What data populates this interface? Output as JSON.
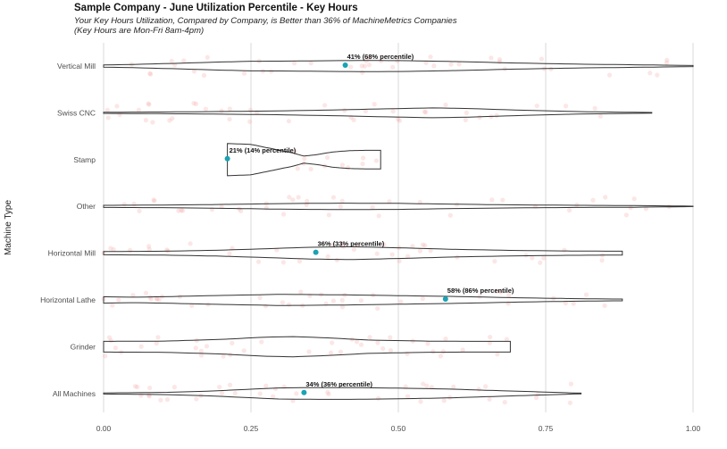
{
  "title": "Sample Company - June Utilization Percentile - Key Hours",
  "subtitle_lines": [
    "Your Key Hours Utilization, Compared by Company, is Better than 36% of MachineMetrics Companies",
    "(Key Hours are Mon-Fri 8am-4pm)"
  ],
  "chart_data": {
    "type": "violin",
    "title": "Sample Company - June Utilization Percentile - Key Hours",
    "xlabel": "",
    "ylabel": "Machine Type",
    "xlim": [
      0,
      1
    ],
    "x_ticks": [
      {
        "value": 0,
        "label": "0.00"
      },
      {
        "value": 0.25,
        "label": "0.25"
      },
      {
        "value": 0.5,
        "label": "0.50"
      },
      {
        "value": 0.75,
        "label": "0.75"
      },
      {
        "value": 1,
        "label": "1.00"
      }
    ],
    "grid": true,
    "colors": {
      "violin_stroke": "#333333",
      "highlight_point": "#1aa3b2",
      "jitter_points": "#f4a6a6",
      "grid": "#d9d9d9"
    },
    "categories": [
      "Vertical Mill",
      "Swiss CNC",
      "Stamp",
      "Other",
      "Horizontal Mill",
      "Horizontal Lathe",
      "Grinder",
      "All Machines"
    ],
    "violins": [
      {
        "category": "Vertical Mill",
        "min": 0.0,
        "max": 1.0,
        "density": [
          [
            0.0,
            0.1
          ],
          [
            0.05,
            0.15
          ],
          [
            0.12,
            0.25
          ],
          [
            0.2,
            0.38
          ],
          [
            0.25,
            0.45
          ],
          [
            0.3,
            0.46
          ],
          [
            0.38,
            0.5
          ],
          [
            0.45,
            0.52
          ],
          [
            0.52,
            0.5
          ],
          [
            0.6,
            0.42
          ],
          [
            0.7,
            0.28
          ],
          [
            0.8,
            0.18
          ],
          [
            0.9,
            0.12
          ],
          [
            1.0,
            0.05
          ]
        ],
        "company_value": 0.41,
        "label": "41% (68% percentile)"
      },
      {
        "category": "Swiss CNC",
        "min": 0.0,
        "max": 0.93,
        "density": [
          [
            0.0,
            0.05
          ],
          [
            0.1,
            0.08
          ],
          [
            0.2,
            0.12
          ],
          [
            0.3,
            0.18
          ],
          [
            0.4,
            0.28
          ],
          [
            0.5,
            0.4
          ],
          [
            0.56,
            0.46
          ],
          [
            0.62,
            0.4
          ],
          [
            0.7,
            0.26
          ],
          [
            0.8,
            0.12
          ],
          [
            0.88,
            0.06
          ],
          [
            0.93,
            0.03
          ]
        ],
        "company_value": null,
        "label": ""
      },
      {
        "category": "Stamp",
        "min": 0.21,
        "max": 0.47,
        "density": [
          [
            0.21,
            1.0
          ],
          [
            0.25,
            0.95
          ],
          [
            0.28,
            0.72
          ],
          [
            0.32,
            0.42
          ],
          [
            0.34,
            0.22
          ],
          [
            0.36,
            0.3
          ],
          [
            0.39,
            0.48
          ],
          [
            0.42,
            0.56
          ],
          [
            0.45,
            0.58
          ],
          [
            0.47,
            0.58
          ]
        ],
        "company_value": 0.21,
        "label": "21% (14% percentile)"
      },
      {
        "category": "Other",
        "min": 0.0,
        "max": 1.0,
        "density": [
          [
            0.0,
            0.1
          ],
          [
            0.1,
            0.12
          ],
          [
            0.2,
            0.18
          ],
          [
            0.3,
            0.26
          ],
          [
            0.4,
            0.3
          ],
          [
            0.5,
            0.28
          ],
          [
            0.6,
            0.2
          ],
          [
            0.7,
            0.14
          ],
          [
            0.8,
            0.1
          ],
          [
            0.9,
            0.08
          ],
          [
            1.0,
            0.02
          ]
        ],
        "company_value": null,
        "label": ""
      },
      {
        "category": "Horizontal Mill",
        "min": 0.0,
        "max": 0.88,
        "density": [
          [
            0.0,
            0.15
          ],
          [
            0.1,
            0.18
          ],
          [
            0.2,
            0.28
          ],
          [
            0.28,
            0.42
          ],
          [
            0.35,
            0.55
          ],
          [
            0.42,
            0.6
          ],
          [
            0.5,
            0.5
          ],
          [
            0.6,
            0.35
          ],
          [
            0.7,
            0.25
          ],
          [
            0.8,
            0.2
          ],
          [
            0.88,
            0.18
          ]
        ],
        "company_value": 0.36,
        "label": "36% (33% percentile)"
      },
      {
        "category": "Horizontal Lathe",
        "min": 0.0,
        "max": 0.88,
        "density": [
          [
            0.0,
            0.3
          ],
          [
            0.05,
            0.25
          ],
          [
            0.1,
            0.3
          ],
          [
            0.2,
            0.42
          ],
          [
            0.3,
            0.52
          ],
          [
            0.4,
            0.48
          ],
          [
            0.5,
            0.4
          ],
          [
            0.6,
            0.32
          ],
          [
            0.7,
            0.2
          ],
          [
            0.8,
            0.12
          ],
          [
            0.88,
            0.08
          ]
        ],
        "company_value": 0.58,
        "label": "58% (86% percentile)"
      },
      {
        "category": "Grinder",
        "min": 0.0,
        "max": 0.69,
        "density": [
          [
            0.0,
            0.5
          ],
          [
            0.1,
            0.52
          ],
          [
            0.2,
            0.68
          ],
          [
            0.27,
            0.88
          ],
          [
            0.32,
            0.95
          ],
          [
            0.38,
            0.82
          ],
          [
            0.45,
            0.62
          ],
          [
            0.55,
            0.52
          ],
          [
            0.62,
            0.5
          ],
          [
            0.69,
            0.5
          ]
        ],
        "company_value": null,
        "label": ""
      },
      {
        "category": "All Machines",
        "min": 0.0,
        "max": 0.81,
        "density": [
          [
            0.0,
            0.05
          ],
          [
            0.1,
            0.1
          ],
          [
            0.18,
            0.22
          ],
          [
            0.25,
            0.4
          ],
          [
            0.3,
            0.52
          ],
          [
            0.36,
            0.55
          ],
          [
            0.42,
            0.55
          ],
          [
            0.5,
            0.5
          ],
          [
            0.58,
            0.42
          ],
          [
            0.65,
            0.3
          ],
          [
            0.72,
            0.18
          ],
          [
            0.78,
            0.08
          ],
          [
            0.81,
            0.03
          ]
        ],
        "company_value": 0.34,
        "label": "34% (36% percentile)"
      }
    ]
  }
}
